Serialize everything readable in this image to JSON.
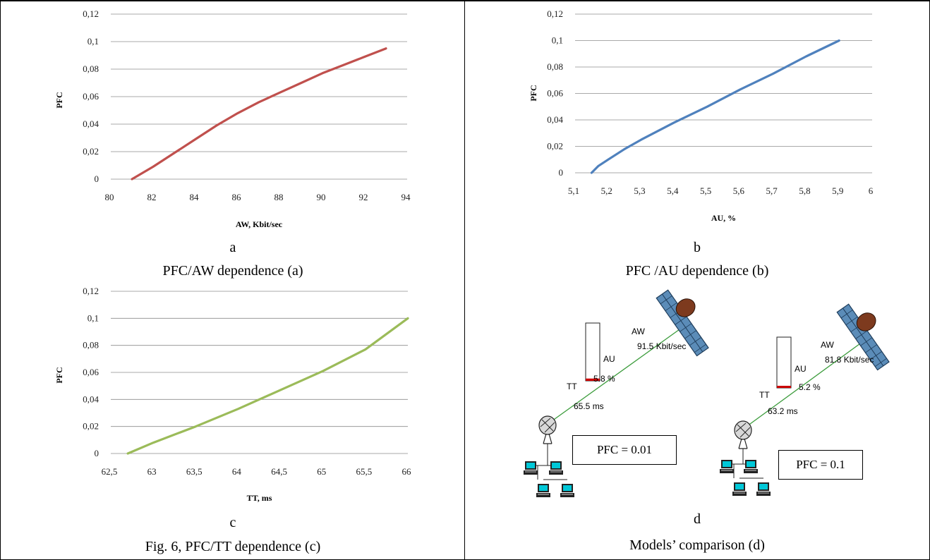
{
  "chart_data": [
    {
      "type": "line",
      "id": "a",
      "xlabel": "AW, Kbit/sec",
      "ylabel": "PFC",
      "xlim": [
        80,
        94
      ],
      "ylim": [
        0,
        0.12
      ],
      "x_ticks": [
        "80",
        "82",
        "84",
        "86",
        "88",
        "90",
        "92",
        "94"
      ],
      "y_ticks": [
        "0",
        "0,02",
        "0,04",
        "0,06",
        "0,08",
        "0,1",
        "0,12"
      ],
      "grid": "horizontal",
      "color": "#c0504d",
      "series": [
        {
          "x": [
            81,
            82,
            83,
            84,
            85,
            86,
            87,
            88,
            89,
            90,
            91,
            92,
            93
          ],
          "y": [
            0,
            0.009,
            0.019,
            0.029,
            0.039,
            0.048,
            0.056,
            0.063,
            0.07,
            0.077,
            0.083,
            0.089,
            0.095
          ]
        }
      ],
      "letter": "a",
      "caption": "PFC/AW dependence (a)"
    },
    {
      "type": "line",
      "id": "b",
      "xlabel": "AU, %",
      "ylabel": "PFC",
      "xlim": [
        5.1,
        6
      ],
      "ylim": [
        0,
        0.12
      ],
      "x_ticks": [
        "5,1",
        "5,2",
        "5,3",
        "5,4",
        "5,5",
        "5,6",
        "5,7",
        "5,8",
        "5,9",
        "6"
      ],
      "y_ticks": [
        "0",
        "0,02",
        "0,04",
        "0,06",
        "0,08",
        "0,1",
        "0,12"
      ],
      "grid": "horizontal",
      "color": "#4f81bd",
      "series": [
        {
          "x": [
            5.15,
            5.17,
            5.2,
            5.25,
            5.3,
            5.4,
            5.5,
            5.6,
            5.7,
            5.8,
            5.9
          ],
          "y": [
            0,
            0.005,
            0.01,
            0.018,
            0.025,
            0.038,
            0.05,
            0.063,
            0.075,
            0.088,
            0.1
          ]
        }
      ],
      "letter": "b",
      "caption": "PFC /AU dependence (b)"
    },
    {
      "type": "line",
      "id": "c",
      "xlabel": "TT, ms",
      "ylabel": "PFC",
      "xlim": [
        62.5,
        66
      ],
      "ylim": [
        0,
        0.12
      ],
      "x_ticks": [
        "62,5",
        "63",
        "63,5",
        "64",
        "64,5",
        "65",
        "65,5",
        "66"
      ],
      "y_ticks": [
        "0",
        "0,02",
        "0,04",
        "0,06",
        "0,08",
        "0,1",
        "0,12"
      ],
      "grid": "horizontal",
      "color": "#9bbb59",
      "series": [
        {
          "x": [
            62.7,
            63,
            63.5,
            64,
            64.5,
            65,
            65.5,
            66
          ],
          "y": [
            0,
            0.008,
            0.02,
            0.033,
            0.047,
            0.061,
            0.077,
            0.1
          ]
        }
      ],
      "letter": "c",
      "caption": "Fig. 6, PFC/TT dependence (c)"
    }
  ],
  "diagram_d": {
    "letter": "d",
    "caption": "Models’ comparison (d)",
    "model1": {
      "aw_label": "AW",
      "aw_value": "91.5 Kbit/sec",
      "au_label": "AU",
      "au_value": "5.8 %",
      "au_fill": 0.04,
      "tt_label": "TT",
      "tt_value": "65.5 ms",
      "pfc": "PFC = 0.01"
    },
    "model2": {
      "aw_label": "AW",
      "aw_value": "81.8 Kbit/sec",
      "au_label": "AU",
      "au_value": "5.2 %",
      "au_fill": 0.04,
      "tt_label": "TT",
      "tt_value": "63.2 ms",
      "pfc": "PFC = 0.1"
    },
    "colors": {
      "link": "#3c9c3c",
      "bar_fill": "#cc0000",
      "panel": "#5b8cb8",
      "dish": "#7d3a1e",
      "screen": "#00c8d8"
    }
  }
}
